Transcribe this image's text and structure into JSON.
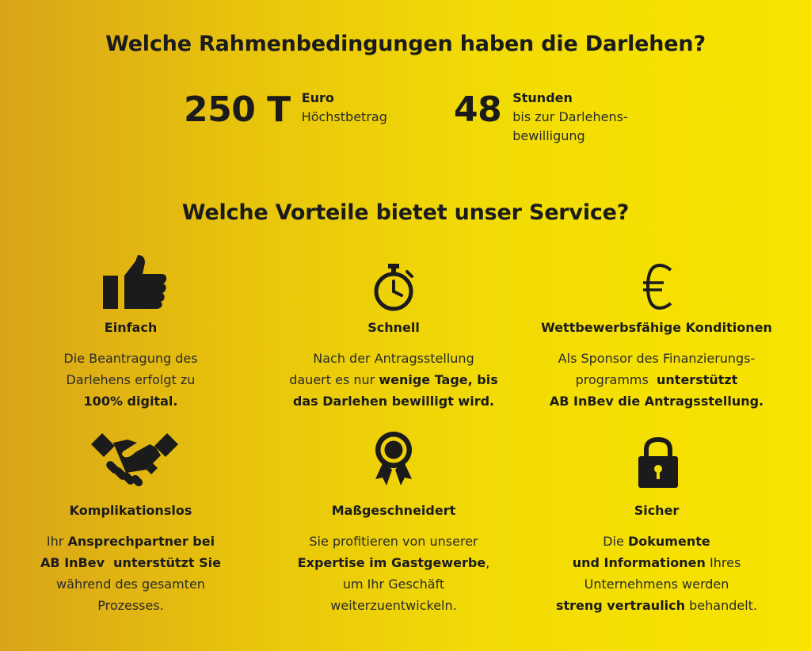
{
  "heading_terms": "Welche Rahmenbedingungen haben die Darlehen?",
  "stats": [
    {
      "value": "250 T",
      "label": "Euro",
      "lines": [
        "Höchstbetrag"
      ]
    },
    {
      "value": "48",
      "label": "Stunden",
      "lines": [
        "bis zur Darlehens-",
        "bewilligung"
      ]
    }
  ],
  "heading_benefits": "Welche Vorteile bietet unser Service?",
  "benefits": [
    {
      "icon": "thumbs-up-icon",
      "title": "Einfach",
      "desc": [
        [
          [
            "Die Beantragung des",
            false
          ]
        ],
        [
          [
            "Darlehens erfolgt zu",
            false
          ]
        ],
        [
          [
            "100% digital.",
            true
          ]
        ]
      ]
    },
    {
      "icon": "stopwatch-icon",
      "title": "Schnell",
      "desc": [
        [
          [
            "Nach der Antragsstellung",
            false
          ]
        ],
        [
          [
            "dauert es nur ",
            false
          ],
          [
            "wenige Tage, bis",
            true
          ]
        ],
        [
          [
            "das Darlehen bewilligt wird.",
            true
          ]
        ]
      ]
    },
    {
      "icon": "euro-icon",
      "title": "Wettbewerbsfähige Konditionen",
      "desc": [
        [
          [
            "Als Sponsor des Finanzierungs-",
            false
          ]
        ],
        [
          [
            "programms  ",
            false
          ],
          [
            "unterstützt",
            true
          ]
        ],
        [
          [
            "AB InBev die Antragsstellung.",
            true
          ]
        ]
      ]
    },
    {
      "icon": "handshake-icon",
      "title": "Komplikationslos",
      "desc": [
        [
          [
            "Ihr ",
            false
          ],
          [
            "Ansprechpartner bei",
            true
          ]
        ],
        [
          [
            "AB InBev  unterstützt Sie",
            true
          ]
        ],
        [
          [
            "während des gesamten",
            false
          ]
        ],
        [
          [
            "Prozesses.",
            false
          ]
        ]
      ]
    },
    {
      "icon": "award-ribbon-icon",
      "title": "Maßgeschneidert",
      "desc": [
        [
          [
            "Sie profitieren von unserer",
            false
          ]
        ],
        [
          [
            "Expertise im Gastgewerbe",
            true
          ],
          [
            ",",
            false
          ]
        ],
        [
          [
            "um Ihr Geschäft",
            false
          ]
        ],
        [
          [
            "weiterzuentwickeln.",
            false
          ]
        ]
      ]
    },
    {
      "icon": "padlock-icon",
      "title": "Sicher",
      "desc": [
        [
          [
            "Die ",
            false
          ],
          [
            "Dokumente",
            true
          ]
        ],
        [
          [
            "und Informationen",
            true
          ],
          [
            " Ihres",
            false
          ]
        ],
        [
          [
            "Unternehmens werden",
            false
          ]
        ],
        [
          [
            "streng vertraulich",
            true
          ],
          [
            " behandelt.",
            false
          ]
        ]
      ]
    }
  ]
}
